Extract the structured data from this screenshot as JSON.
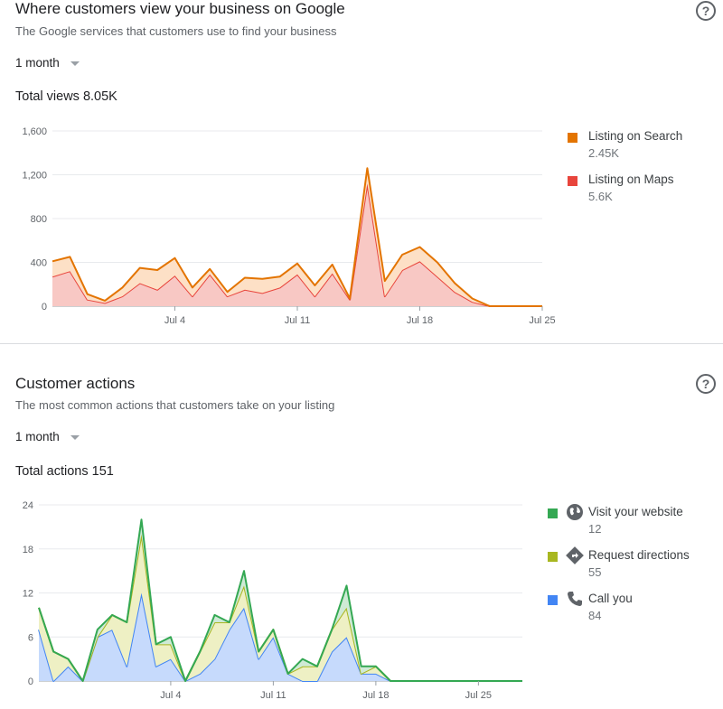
{
  "views_card": {
    "title": "Where customers view your business on Google",
    "subtitle": "The Google services that customers use to find your business",
    "range": "1 month",
    "total_label": "Total views 8.05K",
    "legend": [
      {
        "label": "Listing on Search",
        "value": "2.45K",
        "color": "#e37400"
      },
      {
        "label": "Listing on Maps",
        "value": "5.6K",
        "color": "#e8453c"
      }
    ]
  },
  "actions_card": {
    "title": "Customer actions",
    "subtitle": "The most common actions that customers take on your listing",
    "range": "1 month",
    "total_label": "Total actions 151",
    "legend": [
      {
        "label": "Visit your website",
        "value": "12",
        "color": "#34a853",
        "icon": "globe-icon"
      },
      {
        "label": "Request directions",
        "value": "55",
        "color": "#a8b720",
        "icon": "directions-icon"
      },
      {
        "label": "Call you",
        "value": "84",
        "color": "#4285f4",
        "icon": "phone-icon"
      }
    ]
  },
  "chart_data": [
    {
      "type": "area",
      "stacked": true,
      "ylim": [
        0,
        1600
      ],
      "yticks": [
        "0",
        "400",
        "800",
        "1,200",
        "1,600"
      ],
      "xticks": [
        "Jul 4",
        "Jul 11",
        "Jul 18",
        "Jul 25"
      ],
      "x": [
        "Jun 27",
        "Jun 28",
        "Jun 29",
        "Jun 30",
        "Jul 1",
        "Jul 2",
        "Jul 3",
        "Jul 4",
        "Jul 5",
        "Jul 6",
        "Jul 7",
        "Jul 8",
        "Jul 9",
        "Jul 10",
        "Jul 11",
        "Jul 12",
        "Jul 13",
        "Jul 14",
        "Jul 15",
        "Jul 16",
        "Jul 17",
        "Jul 18",
        "Jul 19",
        "Jul 20",
        "Jul 21",
        "Jul 22",
        "Jul 23",
        "Jul 24",
        "Jul 25"
      ],
      "series": [
        {
          "name": "Listing on Maps",
          "color": "#e8453c",
          "fill": "#f8c8c4",
          "values": [
            270,
            320,
            60,
            30,
            90,
            210,
            150,
            280,
            90,
            290,
            90,
            150,
            120,
            170,
            290,
            90,
            300,
            60,
            1120,
            90,
            330,
            410,
            270,
            130,
            40,
            0,
            0,
            0,
            0
          ]
        },
        {
          "name": "Listing on Search",
          "color": "#e37400",
          "fill": "#fde0c6",
          "values": [
            140,
            130,
            50,
            20,
            80,
            140,
            180,
            160,
            80,
            50,
            40,
            110,
            130,
            100,
            100,
            100,
            80,
            10,
            140,
            140,
            140,
            130,
            130,
            80,
            30,
            0,
            0,
            0,
            0
          ]
        }
      ],
      "grid": true
    },
    {
      "type": "area",
      "stacked": true,
      "ylim": [
        0,
        24
      ],
      "yticks": [
        "0",
        "6",
        "12",
        "18",
        "24"
      ],
      "xticks": [
        "Jul 4",
        "Jul 11",
        "Jul 18",
        "Jul 25"
      ],
      "x": [
        "Jun 25",
        "Jun 26",
        "Jun 27",
        "Jun 28",
        "Jun 29",
        "Jun 30",
        "Jul 1",
        "Jul 2",
        "Jul 3",
        "Jul 4",
        "Jul 5",
        "Jul 6",
        "Jul 7",
        "Jul 8",
        "Jul 9",
        "Jul 10",
        "Jul 11",
        "Jul 12",
        "Jul 13",
        "Jul 14",
        "Jul 15",
        "Jul 16",
        "Jul 17",
        "Jul 18",
        "Jul 19",
        "Jul 20",
        "Jul 21",
        "Jul 22",
        "Jul 23",
        "Jul 24",
        "Jul 25",
        "Jul 26",
        "Jul 27",
        "Jul 28"
      ],
      "series": [
        {
          "name": "Call you",
          "color": "#4285f4",
          "fill": "#c6dafc",
          "values": [
            7,
            0,
            2,
            0,
            6,
            7,
            2,
            12,
            2,
            3,
            0,
            1,
            3,
            7,
            10,
            3,
            6,
            1,
            0,
            0,
            4,
            6,
            1,
            1,
            0,
            0,
            0,
            0,
            0,
            0,
            0,
            0,
            0,
            0
          ]
        },
        {
          "name": "Request directions",
          "color": "#a8b720",
          "fill": "#eef0c4",
          "values": [
            3,
            4,
            1,
            0,
            0,
            2,
            6,
            8,
            3,
            2,
            0,
            3,
            5,
            1,
            3,
            1,
            1,
            0,
            2,
            2,
            3,
            4,
            0,
            1,
            0,
            0,
            0,
            0,
            0,
            0,
            0,
            0,
            0,
            0
          ]
        },
        {
          "name": "Visit your website",
          "color": "#34a853",
          "fill": "#cfead6",
          "values": [
            0,
            0,
            0,
            0,
            1,
            0,
            0,
            2,
            0,
            1,
            0,
            0,
            1,
            0,
            2,
            0,
            0,
            0,
            1,
            0,
            0,
            3,
            1,
            0,
            0,
            0,
            0,
            0,
            0,
            0,
            0,
            0,
            0,
            0
          ]
        }
      ],
      "grid": true
    }
  ]
}
